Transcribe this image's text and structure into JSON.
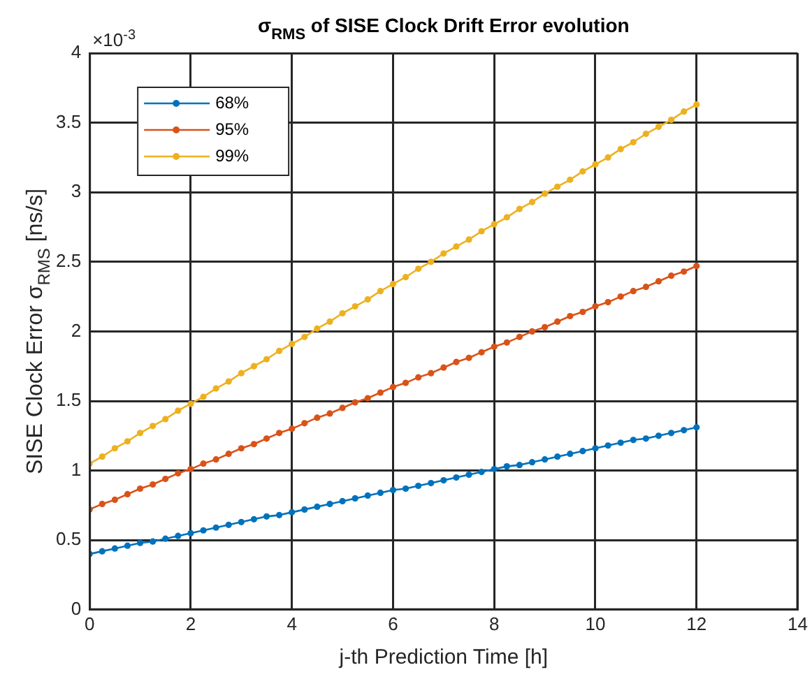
{
  "chart_data": {
    "type": "line",
    "title": "σ$_{RMS}$ of SISE Clock Drift Error evolution",
    "xlabel": "j-th Prediction Time [h]",
    "ylabel": "SISE Clock Error σ$_{RMS}$ [ns/s]",
    "annotations": [
      "×10$^{-3}$"
    ],
    "x": [
      0,
      0.25,
      0.5,
      0.75,
      1,
      1.25,
      1.5,
      1.75,
      2,
      2.25,
      2.5,
      2.75,
      3,
      3.25,
      3.5,
      3.75,
      4,
      4.25,
      4.5,
      4.75,
      5,
      5.25,
      5.5,
      5.75,
      6,
      6.25,
      6.5,
      6.75,
      7,
      7.25,
      7.5,
      7.75,
      8,
      8.25,
      8.5,
      8.75,
      9,
      9.25,
      9.5,
      9.75,
      10,
      10.25,
      10.5,
      10.75,
      11,
      11.25,
      11.5,
      11.75,
      12
    ],
    "series": [
      {
        "name": "68%",
        "color": "#0072bd",
        "values": [
          0.4,
          0.42,
          0.44,
          0.46,
          0.48,
          0.49,
          0.51,
          0.53,
          0.55,
          0.57,
          0.59,
          0.61,
          0.63,
          0.65,
          0.67,
          0.68,
          0.7,
          0.72,
          0.74,
          0.76,
          0.78,
          0.8,
          0.82,
          0.84,
          0.86,
          0.87,
          0.89,
          0.91,
          0.93,
          0.95,
          0.97,
          0.99,
          1.01,
          1.03,
          1.04,
          1.06,
          1.08,
          1.1,
          1.12,
          1.14,
          1.16,
          1.18,
          1.2,
          1.22,
          1.23,
          1.25,
          1.27,
          1.29,
          1.31
        ]
      },
      {
        "name": "95%",
        "color": "#d95319",
        "values": [
          0.72,
          0.76,
          0.79,
          0.83,
          0.87,
          0.9,
          0.94,
          0.98,
          1.01,
          1.05,
          1.08,
          1.12,
          1.16,
          1.19,
          1.23,
          1.27,
          1.3,
          1.34,
          1.38,
          1.41,
          1.45,
          1.49,
          1.52,
          1.56,
          1.6,
          1.63,
          1.67,
          1.7,
          1.74,
          1.78,
          1.81,
          1.85,
          1.89,
          1.92,
          1.96,
          2.0,
          2.03,
          2.07,
          2.11,
          2.14,
          2.18,
          2.21,
          2.25,
          2.29,
          2.32,
          2.36,
          2.4,
          2.43,
          2.47
        ]
      },
      {
        "name": "99%",
        "color": "#edb120",
        "values": [
          1.05,
          1.1,
          1.16,
          1.21,
          1.27,
          1.32,
          1.37,
          1.43,
          1.48,
          1.53,
          1.59,
          1.64,
          1.7,
          1.75,
          1.8,
          1.86,
          1.91,
          1.96,
          2.02,
          2.07,
          2.13,
          2.18,
          2.23,
          2.29,
          2.34,
          2.39,
          2.45,
          2.5,
          2.56,
          2.61,
          2.66,
          2.72,
          2.77,
          2.82,
          2.88,
          2.93,
          2.99,
          3.04,
          3.09,
          3.15,
          3.2,
          3.25,
          3.31,
          3.36,
          3.42,
          3.47,
          3.52,
          3.58,
          3.63
        ]
      }
    ],
    "xlim": [
      0,
      14
    ],
    "xticks": [
      0,
      2,
      4,
      6,
      8,
      10,
      12,
      14
    ],
    "ylim": [
      0,
      4
    ],
    "yticks": [
      0,
      0.5,
      1,
      1.5,
      2,
      2.5,
      3,
      3.5,
      4
    ],
    "grid": true,
    "legend": "top left",
    "marker": "circle",
    "line_style": "solid"
  }
}
